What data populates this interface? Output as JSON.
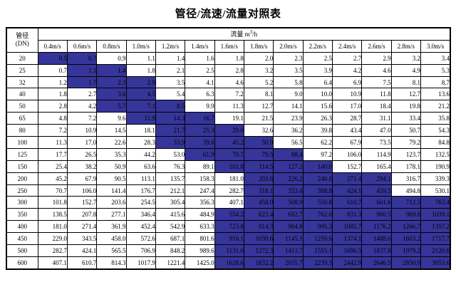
{
  "title": "管径/流速/流量对照表",
  "colors": {
    "highlight_bg": "#35359a",
    "border": "#000000",
    "text": "#000000",
    "page_bg": "#ffffff"
  },
  "table": {
    "corner": {
      "line1": "管径",
      "line2": "(DN)"
    },
    "flow_header": {
      "prefix": "流量 m",
      "sup": "3",
      "suffix": "/h"
    },
    "columns": [
      "0.4m/s",
      "0.6m/s",
      "0.8m/s",
      "1.0m/s",
      "1.2m/s",
      "1.4m/s",
      "1.6m/s",
      "1.8m/s",
      "2.0m/s",
      "2.2m/s",
      "2.4m/s",
      "2.6m/s",
      "2.8m/s",
      "3.0m/s"
    ],
    "rows": [
      {
        "dn": "20",
        "values": [
          "0.5",
          "0.7",
          "0.9",
          "1.1",
          "1.4",
          "1.6",
          "1.8",
          "2.0",
          "2.3",
          "2.5",
          "2.7",
          "2.9",
          "3.2",
          "3.4"
        ],
        "highlight": [
          0,
          1
        ]
      },
      {
        "dn": "25",
        "values": [
          "0.7",
          "1.1",
          "1.4",
          "1.8",
          "2.1",
          "2.5",
          "2.8",
          "3.2",
          "3.5",
          "3.9",
          "4.2",
          "4.6",
          "4.9",
          "5.3"
        ],
        "highlight": [
          1,
          2
        ]
      },
      {
        "dn": "32",
        "values": [
          "1.2",
          "1.7",
          "2.3",
          "2.9",
          "3.5",
          "4.1",
          "4.6",
          "5.2",
          "5.8",
          "6.4",
          "6.9",
          "7.5",
          "8.1",
          "8.7"
        ],
        "highlight": [
          1,
          3
        ]
      },
      {
        "dn": "40",
        "values": [
          "1.8",
          "2.7",
          "3.6",
          "4.5",
          "5.4",
          "6.3",
          "7.2",
          "8.1",
          "9.0",
          "10.0",
          "10.9",
          "11.8",
          "12.7",
          "13.6"
        ],
        "highlight": [
          2,
          3
        ]
      },
      {
        "dn": "50",
        "values": [
          "2.8",
          "4.2",
          "5.7",
          "7.1",
          "8.5",
          "9.9",
          "11.3",
          "12.7",
          "14.1",
          "15.6",
          "17.0",
          "18.4",
          "19.8",
          "21.2"
        ],
        "highlight": [
          2,
          4
        ]
      },
      {
        "dn": "65",
        "values": [
          "4.8",
          "7.2",
          "9.6",
          "11.9",
          "14.3",
          "16.7",
          "19.1",
          "21.5",
          "23.9",
          "26.3",
          "28.7",
          "31.1",
          "33.4",
          "35.8"
        ],
        "highlight": [
          3,
          5
        ]
      },
      {
        "dn": "80",
        "values": [
          "7.2",
          "10.9",
          "14.5",
          "18.1",
          "21.7",
          "25.3",
          "29.0",
          "32.6",
          "36.2",
          "39.8",
          "43.4",
          "47.0",
          "50.7",
          "54.3"
        ],
        "highlight": [
          4,
          6
        ]
      },
      {
        "dn": "100",
        "values": [
          "11.3",
          "17.0",
          "22.6",
          "28.3",
          "33.9",
          "39.6",
          "45.2",
          "50.9",
          "56.5",
          "62.2",
          "67.9",
          "73.5",
          "79.2",
          "84.8"
        ],
        "highlight": [
          4,
          7
        ]
      },
      {
        "dn": "125",
        "values": [
          "17.7",
          "26.5",
          "35.3",
          "44.2",
          "53.0",
          "61.9",
          "70.7",
          "79.5",
          "88.4",
          "97.2",
          "106.0",
          "114.9",
          "123.7",
          "132.5"
        ],
        "highlight": [
          5,
          8
        ]
      },
      {
        "dn": "150",
        "values": [
          "25.4",
          "38.2",
          "50.9",
          "63.6",
          "76.3",
          "89.1",
          "101.8",
          "114.5",
          "127.2",
          "140.0",
          "152.7",
          "165.4",
          "178.1",
          "190.9"
        ],
        "highlight": [
          6,
          9
        ]
      },
      {
        "dn": "200",
        "values": [
          "45.2",
          "67.9",
          "90.5",
          "113.1",
          "135.7",
          "158.3",
          "181.0",
          "203.6",
          "226.2",
          "248.8",
          "271.4",
          "294.1",
          "316.7",
          "339.3"
        ],
        "highlight": [
          7,
          11
        ]
      },
      {
        "dn": "250",
        "values": [
          "70.7",
          "106.0",
          "141.4",
          "176.7",
          "212.1",
          "247.4",
          "282.7",
          "318.1",
          "353.4",
          "388.8",
          "424.1",
          "459.5",
          "494.8",
          "530.1"
        ],
        "highlight": [
          7,
          11
        ]
      },
      {
        "dn": "300",
        "values": [
          "101.8",
          "152.7",
          "203.6",
          "254.5",
          "305.4",
          "356.3",
          "407.1",
          "458.0",
          "508.9",
          "559.8",
          "610.7",
          "661.6",
          "712.5",
          "763.4"
        ],
        "highlight": [
          7,
          13
        ]
      },
      {
        "dn": "350",
        "values": [
          "138.5",
          "207.8",
          "277.1",
          "346.4",
          "415.6",
          "484.9",
          "554.2",
          "623.4",
          "692.7",
          "762.0",
          "831.3",
          "900.5",
          "969.8",
          "1039.1"
        ],
        "highlight": [
          6,
          13
        ]
      },
      {
        "dn": "400",
        "values": [
          "181.0",
          "271.4",
          "361.9",
          "452.4",
          "542.9",
          "633.3",
          "723.8",
          "814.3",
          "904.8",
          "995.3",
          "1085.7",
          "1176.2",
          "1266.7",
          "1357.2"
        ],
        "highlight": [
          6,
          13
        ]
      },
      {
        "dn": "450",
        "values": [
          "229.0",
          "343.5",
          "458.0",
          "572.6",
          "687.1",
          "801.6",
          "916.1",
          "1030.6",
          "1145.1",
          "1259.6",
          "1374.1",
          "1488.6",
          "1603.2",
          "1717.7"
        ],
        "highlight": [
          6,
          13
        ]
      },
      {
        "dn": "500",
        "values": [
          "282.7",
          "424.1",
          "565.5",
          "706.9",
          "848.2",
          "989.6",
          "1131.0",
          "1272.3",
          "1413.7",
          "1555.1",
          "1696.5",
          "1837.8",
          "1979.2",
          "2120.6"
        ],
        "highlight": [
          6,
          13
        ]
      },
      {
        "dn": "600",
        "values": [
          "407.1",
          "610.7",
          "814.3",
          "1017.9",
          "1221.4",
          "1425.0",
          "1628.6",
          "1832.2",
          "2035.7",
          "2239.3",
          "2442.9",
          "2646.5",
          "2850.0",
          "3053.6"
        ],
        "highlight": [
          6,
          13
        ]
      }
    ]
  }
}
